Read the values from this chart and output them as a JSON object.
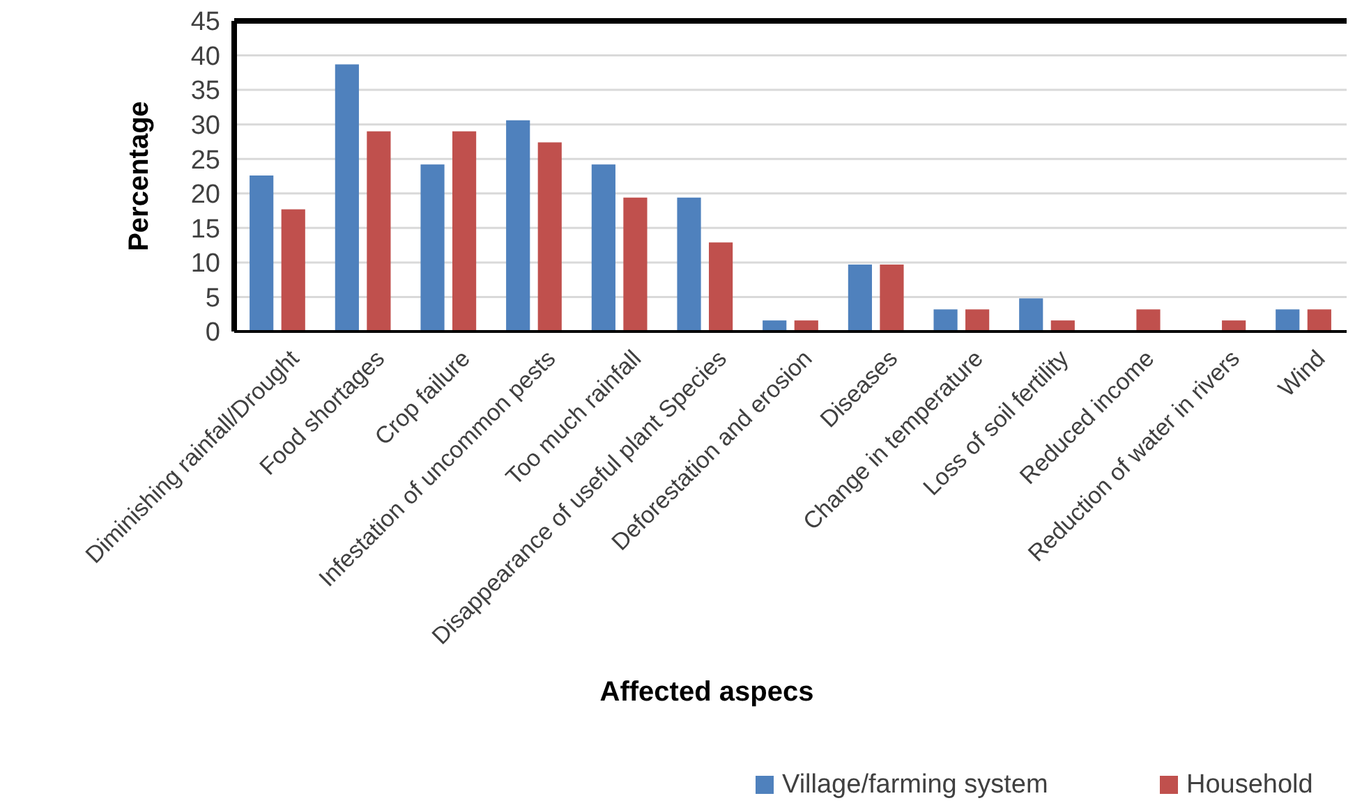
{
  "chart_data": {
    "type": "bar",
    "xlabel": "Affected aspecs",
    "ylabel": "Percentage",
    "categories": [
      "Diminishing rainfall/Drought",
      "Food shortages",
      "Crop failure",
      "Infestation of uncommon pests",
      "Too much rainfall",
      "Disappearance of useful plant Species",
      "Deforestation and erosion",
      "Diseases",
      "Change in temperature",
      "Loss of soil fertility",
      "Reduced income",
      "Reduction of water in rivers",
      "Wind"
    ],
    "series": [
      {
        "name": "Village/farming system",
        "color": "#4f81bd",
        "values": [
          22.6,
          38.7,
          24.2,
          30.6,
          24.2,
          19.4,
          1.6,
          9.7,
          3.2,
          4.8,
          0,
          0,
          3.2
        ]
      },
      {
        "name": "Household",
        "color": "#c0504d",
        "values": [
          17.7,
          29.0,
          29.0,
          27.4,
          19.4,
          12.9,
          1.6,
          9.7,
          3.2,
          1.6,
          3.2,
          1.6,
          3.2
        ]
      }
    ],
    "ylim": [
      0,
      45
    ],
    "yticks": [
      0,
      5,
      10,
      15,
      20,
      25,
      30,
      35,
      40,
      45
    ],
    "grid": "y",
    "legend": "bottom right"
  }
}
